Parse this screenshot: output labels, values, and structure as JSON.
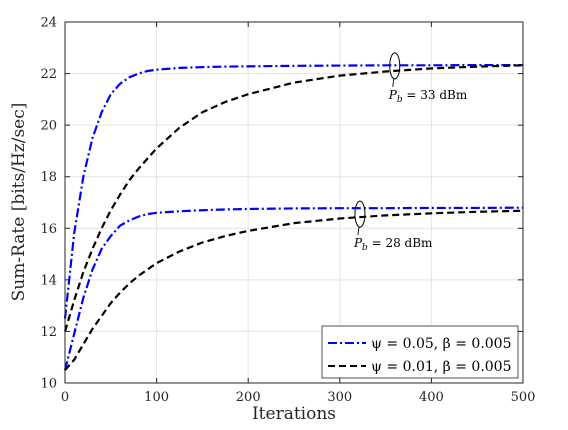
{
  "chart_data": {
    "type": "line",
    "xlabel": "Iterations",
    "ylabel": "Sum-Rate [bits/Hz/sec]",
    "xlim": [
      0,
      500
    ],
    "ylim": [
      10,
      24
    ],
    "xticks": [
      "0",
      "100",
      "200",
      "300",
      "400",
      "500"
    ],
    "yticks": [
      "10",
      "12",
      "14",
      "16",
      "18",
      "20",
      "22",
      "24"
    ],
    "grid": true,
    "legend_position": "bottom-right",
    "x": [
      0,
      10,
      20,
      30,
      40,
      50,
      60,
      70,
      80,
      90,
      100,
      125,
      150,
      175,
      200,
      250,
      300,
      350,
      400,
      450,
      500
    ],
    "series": [
      {
        "name": "ψ = 0.05, β = 0.005",
        "group": "P_b = 33 dBm",
        "color": "#0000ff",
        "dash": "dashdot",
        "values": [
          12.5,
          15.8,
          18.0,
          19.5,
          20.5,
          21.2,
          21.6,
          21.85,
          22.0,
          22.1,
          22.15,
          22.22,
          22.25,
          22.27,
          22.28,
          22.3,
          22.31,
          22.32,
          22.32,
          22.33,
          22.33
        ]
      },
      {
        "name": "ψ = 0.01, β = 0.005",
        "group": "P_b = 33 dBm",
        "color": "#000000",
        "dash": "dashed",
        "values": [
          12.0,
          13.2,
          14.3,
          15.2,
          16.0,
          16.7,
          17.3,
          17.85,
          18.3,
          18.7,
          19.1,
          19.9,
          20.5,
          20.9,
          21.2,
          21.65,
          21.92,
          22.08,
          22.2,
          22.27,
          22.32
        ]
      },
      {
        "name": "ψ = 0.05, β = 0.005",
        "group": "P_b = 28 dBm",
        "color": "#0000ff",
        "dash": "dashdot",
        "values": [
          10.5,
          11.9,
          13.3,
          14.4,
          15.2,
          15.7,
          16.1,
          16.3,
          16.45,
          16.55,
          16.6,
          16.66,
          16.7,
          16.73,
          16.75,
          16.77,
          16.78,
          16.78,
          16.79,
          16.79,
          16.8
        ]
      },
      {
        "name": "ψ = 0.01, β = 0.005",
        "group": "P_b = 28 dBm",
        "color": "#000000",
        "dash": "dashed",
        "values": [
          10.5,
          10.9,
          11.5,
          12.1,
          12.6,
          13.1,
          13.5,
          13.85,
          14.15,
          14.4,
          14.65,
          15.1,
          15.45,
          15.7,
          15.9,
          16.2,
          16.38,
          16.5,
          16.58,
          16.64,
          16.68
        ]
      }
    ],
    "annotations": [
      {
        "label": "P",
        "sub": "b",
        "text": " = 33 dBm",
        "x": 360,
        "y": 22.3
      },
      {
        "label": "P",
        "sub": "b",
        "text": " = 28 dBm",
        "x": 322,
        "y": 16.55
      }
    ]
  }
}
